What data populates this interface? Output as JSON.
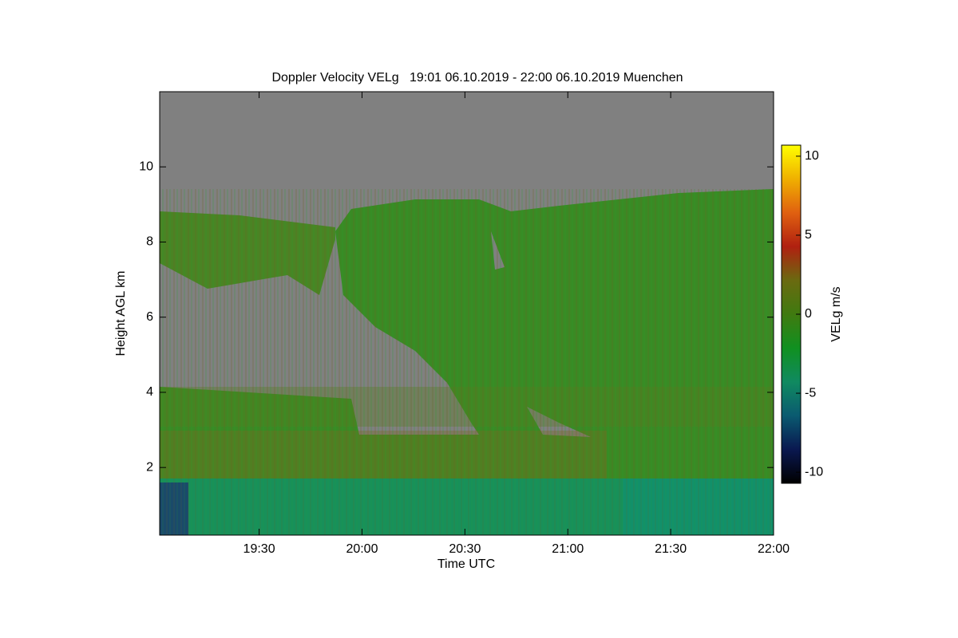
{
  "chart_data": {
    "type": "heatmap",
    "title": "Doppler Velocity VELg   19:01 06.10.2019 - 22:00 06.10.2019 Muenchen",
    "x_label": "Time UTC",
    "y_label": "Height AGL km",
    "xlim": [
      19.0167,
      22.0
    ],
    "xticks": [
      {
        "value": 19.5,
        "label": "19:30"
      },
      {
        "value": 20,
        "label": "20:00"
      },
      {
        "value": 20.5,
        "label": "20:30"
      },
      {
        "value": 21,
        "label": "21:00"
      },
      {
        "value": 21.5,
        "label": "21:30"
      },
      {
        "value": 22,
        "label": "22:00"
      }
    ],
    "ylim": [
      0.2,
      12
    ],
    "yticks": [
      2,
      4,
      6,
      8,
      10
    ],
    "colorbar": {
      "label": "VELg m/s",
      "lim": [
        -10.7,
        10.7
      ],
      "ticks": [
        10,
        5,
        0,
        -5,
        -10
      ],
      "colors": [
        "#000000",
        "#0a1850",
        "#0a5a70",
        "#108a60",
        "#109020",
        "#407a10",
        "#6a6a10",
        "#b02010",
        "#e06010",
        "#f0b000",
        "#ffff00"
      ]
    }
  }
}
